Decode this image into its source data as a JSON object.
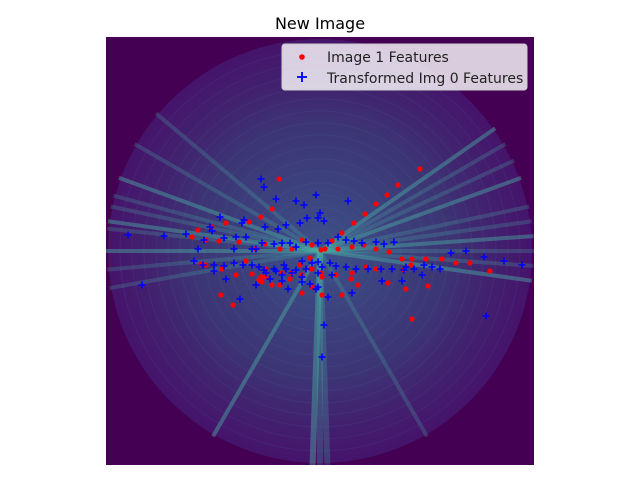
{
  "chart_data": {
    "type": "scatter",
    "title": "New Image",
    "xlabel": "",
    "ylabel": "",
    "axis_visible": false,
    "background": {
      "description": "dark purple square image with circular radar-like sweep pattern",
      "base_color": "#440154",
      "disk_color": "#3b3e7a",
      "streak_color": "#49b0a2"
    },
    "legend": {
      "placement": "top-right",
      "entries": [
        {
          "label": "Image 1 Features",
          "marker": "dot",
          "color": "#ff0000"
        },
        {
          "label": "Transformed Img 0 Features",
          "marker": "plus",
          "color": "#0000ff"
        }
      ]
    },
    "xlim": [
      0,
      428
    ],
    "ylim": [
      428,
      0
    ],
    "series": [
      {
        "name": "Image 1 Features",
        "marker": "dot",
        "color": "#ff0000",
        "points": [
          [
            314,
            132
          ],
          [
            292,
            148
          ],
          [
            281,
            158
          ],
          [
            270,
            167
          ],
          [
            259,
            177
          ],
          [
            248,
            186
          ],
          [
            236,
            196
          ],
          [
            226,
            204
          ],
          [
            215,
            213
          ],
          [
            204,
            221
          ],
          [
            194,
            228
          ],
          [
            186,
            236
          ],
          [
            173,
            142
          ],
          [
            166,
            172
          ],
          [
            155,
            180
          ],
          [
            143,
            185
          ],
          [
            120,
            186
          ],
          [
            106,
            190
          ],
          [
            92,
            193
          ],
          [
            86,
            200
          ],
          [
            100,
            203
          ],
          [
            113,
            204
          ],
          [
            133,
            205
          ],
          [
            150,
            212
          ],
          [
            159,
            207
          ],
          [
            174,
            212
          ],
          [
            186,
            212
          ],
          [
            196,
            203
          ],
          [
            206,
            208
          ],
          [
            219,
            212
          ],
          [
            232,
            212
          ],
          [
            246,
            210
          ],
          [
            258,
            208
          ],
          [
            270,
            212
          ],
          [
            283,
            215
          ],
          [
            296,
            222
          ],
          [
            306,
            222
          ],
          [
            320,
            222
          ],
          [
            336,
            222
          ],
          [
            350,
            226
          ],
          [
            364,
            226
          ],
          [
            384,
            234
          ],
          [
            260,
            230
          ],
          [
            246,
            236
          ],
          [
            230,
            238
          ],
          [
            216,
            240
          ],
          [
            206,
            232
          ],
          [
            196,
            238
          ],
          [
            176,
            236
          ],
          [
            160,
            240
          ],
          [
            146,
            237
          ],
          [
            130,
            238
          ],
          [
            116,
            232
          ],
          [
            100,
            228
          ],
          [
            236,
            258
          ],
          [
            216,
            258
          ],
          [
            206,
            250
          ],
          [
            196,
            256
          ],
          [
            184,
            242
          ],
          [
            174,
            248
          ],
          [
            166,
            248
          ],
          [
            156,
            245
          ],
          [
            252,
            248
          ],
          [
            270,
            232
          ],
          [
            282,
            246
          ],
          [
            298,
            233
          ],
          [
            305,
            228
          ],
          [
            322,
            249
          ],
          [
            300,
            252
          ],
          [
            306,
            282
          ],
          [
            140,
            224
          ],
          [
            155,
            240
          ],
          [
            127,
            268
          ],
          [
            215,
            236
          ],
          [
            205,
            232
          ],
          [
            95,
            227
          ],
          [
            115,
            258
          ],
          [
            245,
            242
          ],
          [
            153,
            243
          ],
          [
            160,
            232
          ]
        ]
      },
      {
        "name": "Transformed Img 0 Features",
        "marker": "plus",
        "color": "#0000ff",
        "points": [
          [
            155,
            142
          ],
          [
            158,
            150
          ],
          [
            170,
            162
          ],
          [
            190,
            164
          ],
          [
            198,
            168
          ],
          [
            210,
            158
          ],
          [
            242,
            164
          ],
          [
            214,
            176
          ],
          [
            201,
            181
          ],
          [
            212,
            181
          ],
          [
            218,
            184
          ],
          [
            194,
            186
          ],
          [
            180,
            188
          ],
          [
            172,
            192
          ],
          [
            159,
            190
          ],
          [
            136,
            186
          ],
          [
            138,
            183
          ],
          [
            114,
            180
          ],
          [
            104,
            190
          ],
          [
            98,
            203
          ],
          [
            92,
            212
          ],
          [
            80,
            197
          ],
          [
            58,
            199
          ],
          [
            22,
            198
          ],
          [
            88,
            224
          ],
          [
            97,
            228
          ],
          [
            108,
            228
          ],
          [
            118,
            229
          ],
          [
            128,
            226
          ],
          [
            137,
            228
          ],
          [
            146,
            228
          ],
          [
            153,
            230
          ],
          [
            158,
            233
          ],
          [
            170,
            234
          ],
          [
            180,
            232
          ],
          [
            190,
            233
          ],
          [
            200,
            232
          ],
          [
            206,
            226
          ],
          [
            212,
            225
          ],
          [
            216,
            230
          ],
          [
            224,
            226
          ],
          [
            230,
            229
          ],
          [
            240,
            230
          ],
          [
            250,
            232
          ],
          [
            262,
            232
          ],
          [
            275,
            232
          ],
          [
            286,
            232
          ],
          [
            298,
            233
          ],
          [
            308,
            232
          ],
          [
            318,
            228
          ],
          [
            326,
            230
          ],
          [
            334,
            232
          ],
          [
            345,
            216
          ],
          [
            360,
            214
          ],
          [
            378,
            220
          ],
          [
            398,
            224
          ],
          [
            416,
            228
          ],
          [
            288,
            205
          ],
          [
            278,
            207
          ],
          [
            270,
            205
          ],
          [
            256,
            206
          ],
          [
            248,
            204
          ],
          [
            240,
            203
          ],
          [
            232,
            200
          ],
          [
            222,
            206
          ],
          [
            212,
            206
          ],
          [
            200,
            205
          ],
          [
            190,
            210
          ],
          [
            184,
            206
          ],
          [
            176,
            206
          ],
          [
            168,
            207
          ],
          [
            156,
            206
          ],
          [
            150,
            212
          ],
          [
            140,
            200
          ],
          [
            130,
            200
          ],
          [
            118,
            201
          ],
          [
            106,
            194
          ],
          [
            128,
            212
          ],
          [
            146,
            212
          ],
          [
            178,
            228
          ],
          [
            196,
            224
          ],
          [
            196,
            240
          ],
          [
            210,
            252
          ],
          [
            222,
            260
          ],
          [
            246,
            256
          ],
          [
            276,
            244
          ],
          [
            296,
            244
          ],
          [
            316,
            238
          ],
          [
            300,
            230
          ],
          [
            108,
            234
          ],
          [
            120,
            242
          ],
          [
            134,
            262
          ],
          [
            150,
            248
          ],
          [
            164,
            242
          ],
          [
            176,
            244
          ],
          [
            182,
            252
          ],
          [
            196,
            245
          ],
          [
            204,
            247
          ],
          [
            212,
            236
          ],
          [
            212,
            250
          ],
          [
            226,
            238
          ],
          [
            36,
            248
          ],
          [
            218,
            288
          ],
          [
            216,
            320
          ],
          [
            380,
            279
          ],
          [
            160,
            236
          ],
          [
            168,
            232
          ],
          [
            176,
            238
          ],
          [
            186,
            236
          ]
        ]
      }
    ]
  }
}
